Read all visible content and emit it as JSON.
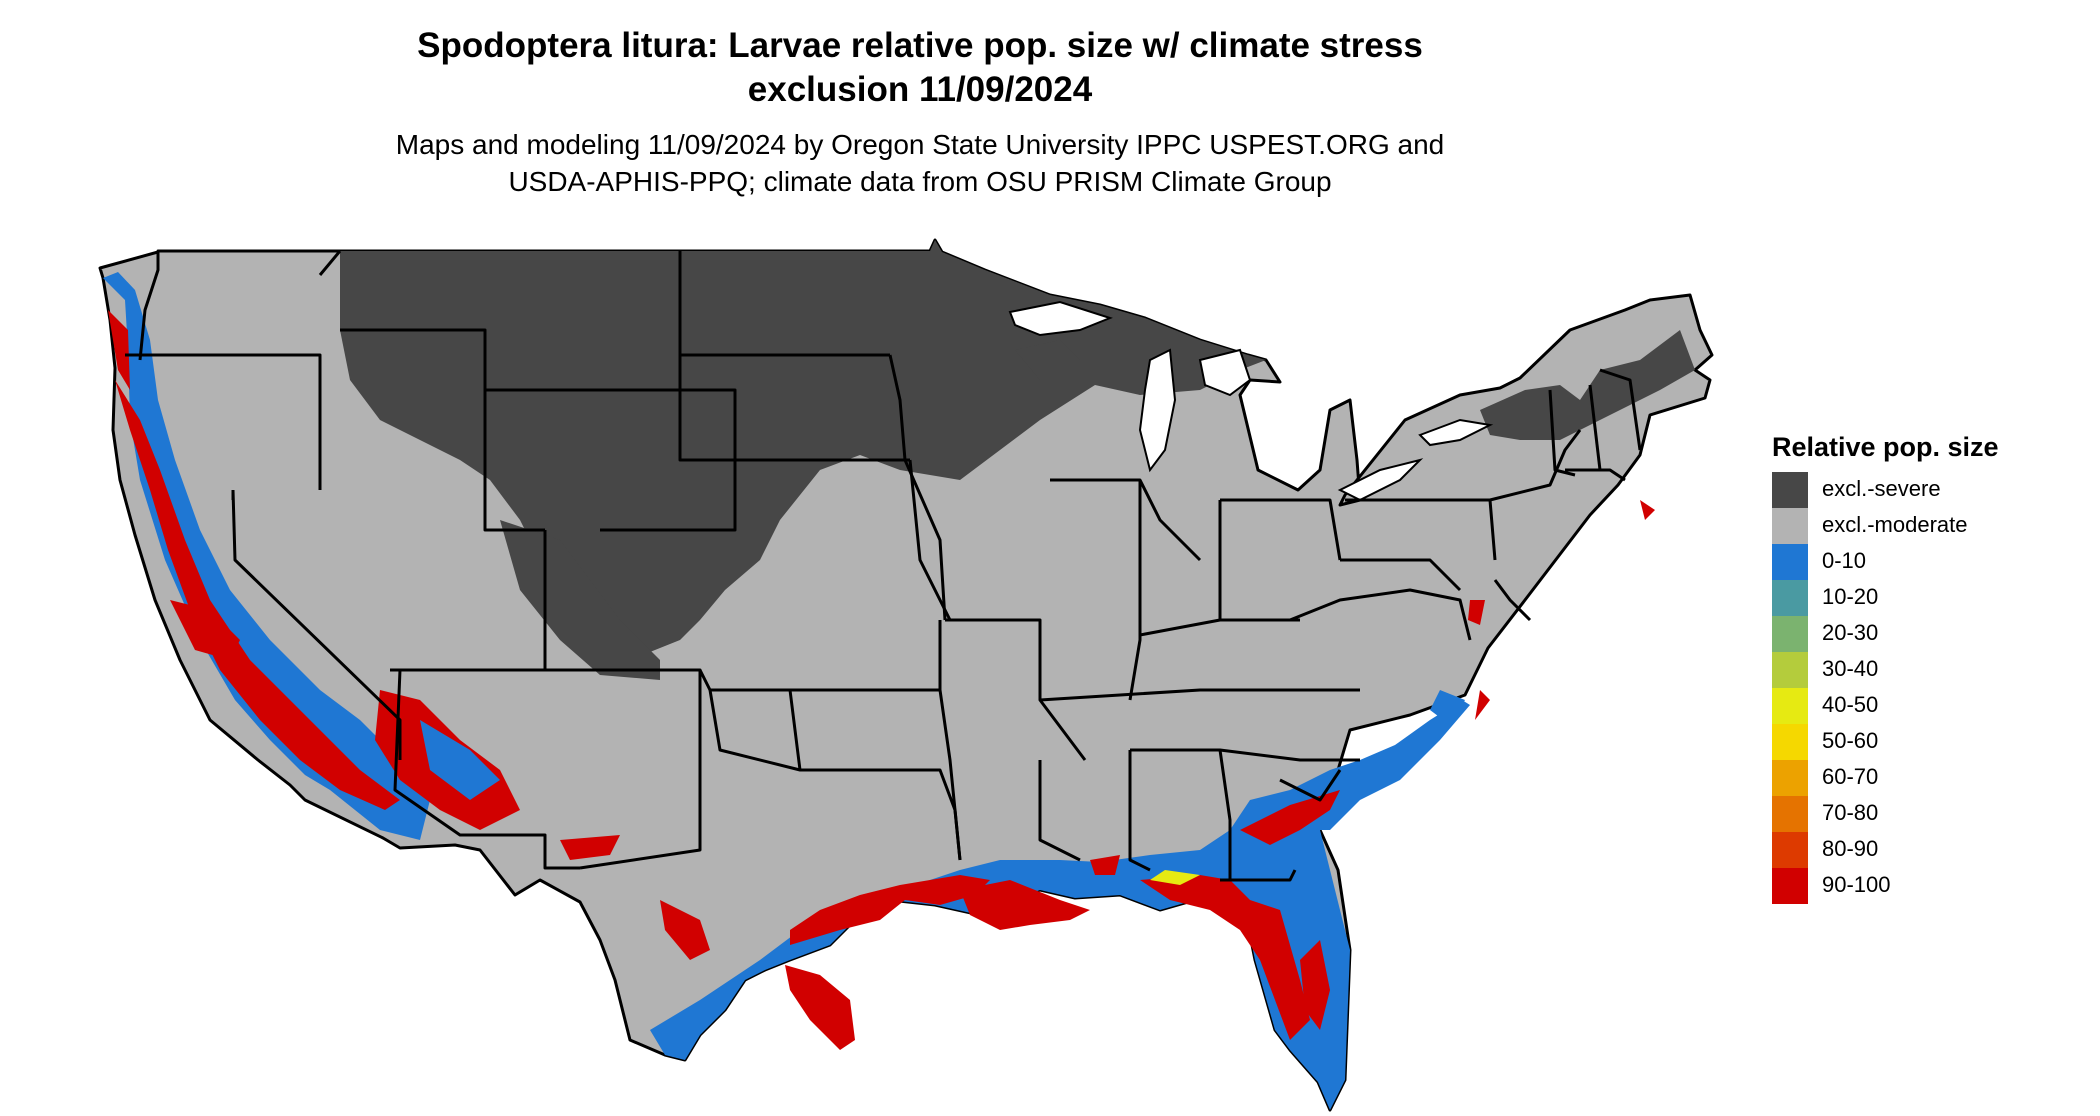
{
  "title": {
    "line1": "Spodoptera litura: Larvae relative pop. size w/ climate stress",
    "line2": "exclusion 11/09/2024"
  },
  "subtitle": {
    "line1": "Maps and modeling 11/09/2024 by Oregon State University IPPC USPEST.ORG and",
    "line2": "USDA-APHIS-PPQ; climate data from OSU PRISM Climate Group"
  },
  "legend": {
    "title": "Relative pop. size",
    "items": [
      {
        "label": "excl.-severe",
        "color": "#474747"
      },
      {
        "label": "excl.-moderate",
        "color": "#b3b3b3"
      },
      {
        "label": "0-10",
        "color": "#1f77d3"
      },
      {
        "label": "10-20",
        "color": "#4a9aa2"
      },
      {
        "label": "20-30",
        "color": "#7bb36f"
      },
      {
        "label": "30-40",
        "color": "#b4cc3c"
      },
      {
        "label": "40-50",
        "color": "#e6ea12"
      },
      {
        "label": "50-60",
        "color": "#f5d800"
      },
      {
        "label": "60-70",
        "color": "#eca200"
      },
      {
        "label": "70-80",
        "color": "#e57300"
      },
      {
        "label": "80-90",
        "color": "#dd3a00"
      },
      {
        "label": "90-100",
        "color": "#d10000"
      }
    ]
  }
}
